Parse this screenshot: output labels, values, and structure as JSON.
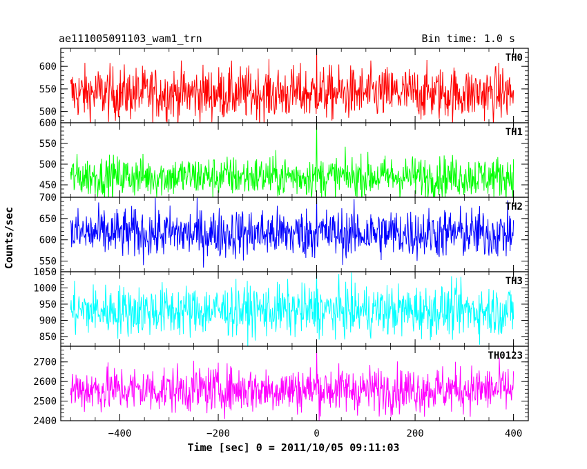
{
  "chart_data": {
    "type": "line",
    "title": "ae111005091103_wam1_trn",
    "bin_time": "Bin time: 1.0 s",
    "ylabel": "Counts/sec",
    "xlabel": "Time [sec] 0 = 2011/10/05 09:11:03",
    "xlim": [
      -520,
      430
    ],
    "x_start": -500,
    "x_end": 400,
    "x_step": 1,
    "xticks": [
      -400,
      -200,
      0,
      200,
      400
    ],
    "xtick_labels": [
      "−400",
      "−200",
      "0",
      "200",
      "400"
    ],
    "panels": [
      {
        "name": "TH0",
        "color": "#ff0000",
        "ylim": [
          475,
          640
        ],
        "yticks": [
          500,
          550,
          600
        ],
        "mean": 540,
        "spread": 30,
        "peak": 640
      },
      {
        "name": "TH1",
        "color": "#00ff00",
        "ylim": [
          420,
          600
        ],
        "yticks": [
          450,
          500,
          550,
          600
        ],
        "mean": 470,
        "spread": 25,
        "peak": 600
      },
      {
        "name": "TH2",
        "color": "#0000ff",
        "ylim": [
          525,
          700
        ],
        "yticks": [
          550,
          600,
          650,
          700
        ],
        "mean": 615,
        "spread": 30,
        "peak": 700
      },
      {
        "name": "TH3",
        "color": "#00ffff",
        "ylim": [
          820,
          1050
        ],
        "yticks": [
          850,
          900,
          950,
          1000,
          1050
        ],
        "mean": 930,
        "spread": 40,
        "peak": 1045
      },
      {
        "name": "TH0123",
        "color": "#ff00ff",
        "ylim": [
          2400,
          2780
        ],
        "yticks": [
          2400,
          2500,
          2600,
          2700
        ],
        "mean": 2560,
        "spread": 60,
        "peak": 2760
      }
    ]
  }
}
